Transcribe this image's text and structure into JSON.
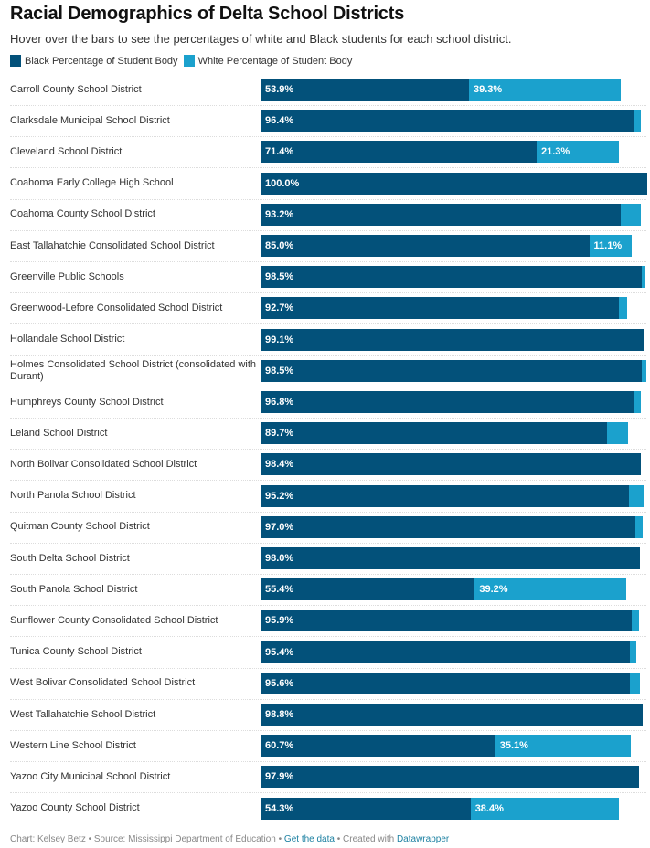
{
  "chart_data": {
    "type": "bar",
    "stacked": true,
    "orientation": "horizontal",
    "title": "Racial Demographics of Delta School Districts",
    "subtitle": "Hover over the bars to see the percentages of white and Black students for each school district.",
    "xlim": [
      0,
      100
    ],
    "legend_position": "top-left",
    "categories": [
      "Carroll County School District",
      "Clarksdale Municipal School District",
      "Cleveland School District",
      "Coahoma Early College High School",
      "Coahoma County School District",
      "East Tallahatchie Consolidated School District",
      "Greenville Public Schools",
      "Greenwood-Lefore Consolidated School District",
      "Hollandale School District",
      "Holmes Consolidated School District (consolidated with Durant)",
      "Humphreys County School District",
      "Leland School District",
      "North Bolivar Consolidated School District",
      "North Panola School District",
      "Quitman County School District",
      "South Delta School District",
      "South Panola School District",
      "Sunflower County Consolidated School District",
      "Tunica County School District",
      "West Bolivar Consolidated School District",
      "West Tallahatchie School District",
      "Western Line School District",
      "Yazoo City Municipal School District",
      "Yazoo County School District"
    ],
    "series": [
      {
        "name": "Black Percentage of Student Body",
        "color": "#03517a",
        "values": [
          53.9,
          96.4,
          71.4,
          100.0,
          93.2,
          85.0,
          98.5,
          92.7,
          99.1,
          98.5,
          96.8,
          89.7,
          98.4,
          95.2,
          97.0,
          98.0,
          55.4,
          95.9,
          95.4,
          95.6,
          98.8,
          60.7,
          97.9,
          54.3
        ]
      },
      {
        "name": "White Percentage of Student Body",
        "color": "#1ba1cd",
        "values": [
          39.3,
          1.9,
          21.3,
          0,
          5.1,
          11.1,
          0.8,
          2.1,
          0,
          1.3,
          1.5,
          5.3,
          0,
          3.9,
          1.8,
          0,
          39.2,
          2.0,
          1.8,
          2.5,
          0,
          35.1,
          0,
          38.4
        ]
      }
    ],
    "label_threshold": 10
  },
  "footer": {
    "chart_by": "Chart: Kelsey Betz",
    "sep": " • ",
    "source": "Source: Mississippi Department of Education",
    "get_data": "Get the data",
    "created": "Created with",
    "datawrapper": "Datawrapper"
  }
}
